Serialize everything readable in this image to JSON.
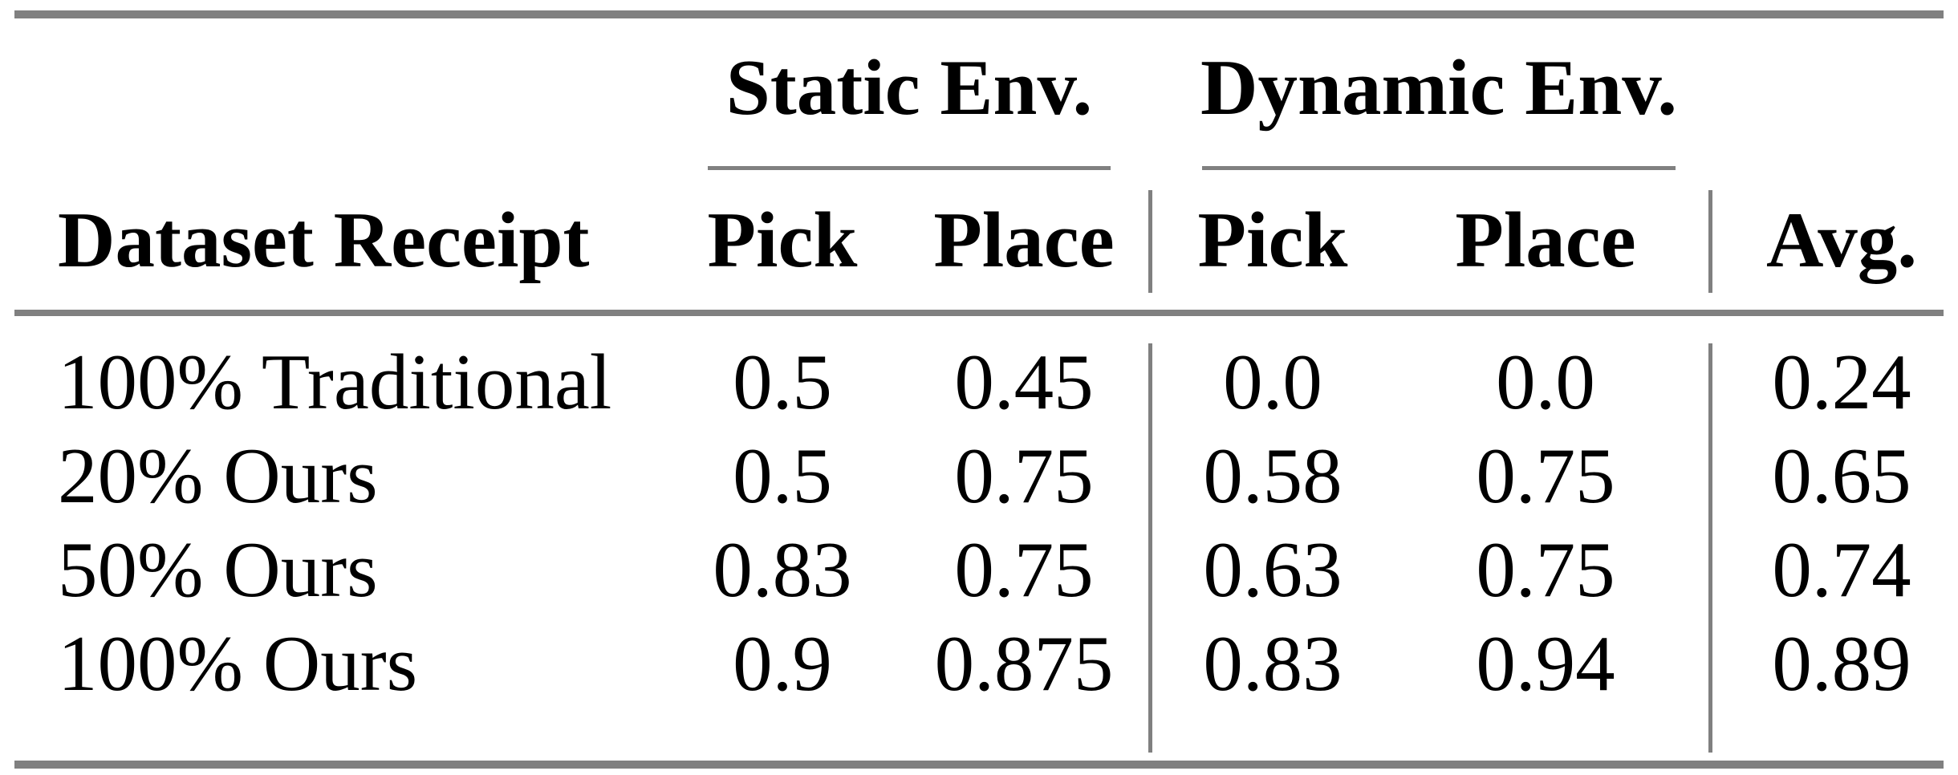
{
  "table": {
    "row_header": "Dataset Receipt",
    "groups": [
      {
        "label": "Static Env."
      },
      {
        "label": "Dynamic Env."
      }
    ],
    "columns": [
      "Pick",
      "Place",
      "Pick",
      "Place",
      "Avg."
    ],
    "rows": [
      {
        "label": "100% Traditional",
        "cells": [
          "0.5",
          "0.45",
          "0.0",
          "0.0",
          "0.24"
        ]
      },
      {
        "label": "20% Ours",
        "cells": [
          "0.5",
          "0.75",
          "0.58",
          "0.75",
          "0.65"
        ]
      },
      {
        "label": "50% Ours",
        "cells": [
          "0.83",
          "0.75",
          "0.63",
          "0.75",
          "0.74"
        ]
      },
      {
        "label": "100% Ours",
        "cells": [
          "0.9",
          "0.875",
          "0.83",
          "0.94",
          "0.89"
        ]
      }
    ],
    "colors": {
      "rule": "#808080",
      "text": "#000000",
      "background": "#ffffff"
    }
  }
}
